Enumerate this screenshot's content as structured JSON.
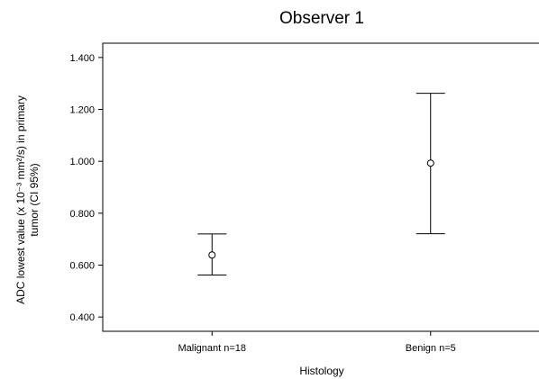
{
  "chart_data": {
    "type": "errorbar",
    "title": "Observer 1",
    "xlabel": "Histology",
    "ylabel_lines": [
      "ADC lowest value (x 10⁻³ mm²/s) in primary",
      "tumor  (CI 95%)"
    ],
    "categories": [
      "Malignant n=18",
      "Benign n=5"
    ],
    "means": [
      0.639,
      0.993
    ],
    "ci_lower": [
      0.562,
      0.721
    ],
    "ci_upper": [
      0.72,
      1.262
    ],
    "ylim": [
      0.345,
      1.455
    ],
    "yticks": [
      0.4,
      0.6,
      0.8,
      1.0,
      1.2,
      1.4
    ],
    "ytick_labels": [
      "0.400",
      "0.600",
      "0.800",
      "1.000",
      "1.200",
      "1.400"
    ],
    "grid": false,
    "legend": "none"
  }
}
